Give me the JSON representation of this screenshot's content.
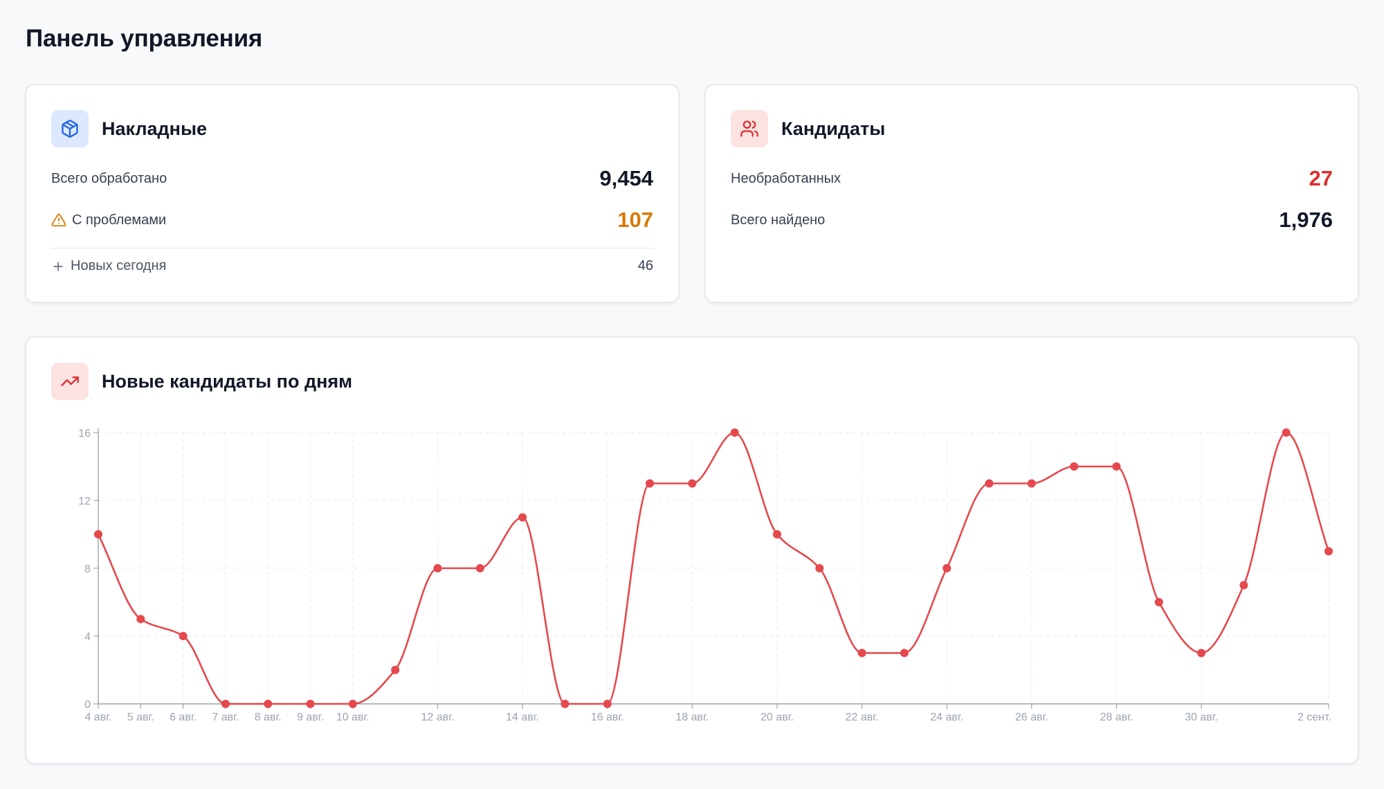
{
  "page": {
    "title": "Панель управления"
  },
  "invoices": {
    "title": "Накладные",
    "icon": "package-icon",
    "total_label": "Всего обработано",
    "total_value": "9,454",
    "problems_label": "С проблемами",
    "problems_value": "107",
    "new_today_label": "Новых сегодня",
    "new_today_value": "46"
  },
  "candidates": {
    "title": "Кандидаты",
    "icon": "users-icon",
    "unprocessed_label": "Необработанных",
    "unprocessed_value": "27",
    "found_label": "Всего найдено",
    "found_value": "1,976"
  },
  "chart_section": {
    "title": "Новые кандидаты по дням",
    "icon": "trending-up-icon"
  },
  "colors": {
    "accent_red": "#e5484d",
    "amber": "#d97a06",
    "blue_icon": "#2563eb"
  },
  "chart_data": {
    "type": "line",
    "x": [
      "4 авг.",
      "5 авг.",
      "6 авг.",
      "7 авг.",
      "8 авг.",
      "9 авг.",
      "10 авг.",
      "11 авг.",
      "12 авг.",
      "13 авг.",
      "14 авг.",
      "15 авг.",
      "16 авг.",
      "17 авг.",
      "18 авг.",
      "19 авг.",
      "20 авг.",
      "21 авг.",
      "22 авг.",
      "23 авг.",
      "24 авг.",
      "25 авг.",
      "26 авг.",
      "27 авг.",
      "28 авг.",
      "29 авг.",
      "30 авг.",
      "31 авг.",
      "1 сент.",
      "2 сент."
    ],
    "x_tick_labels": [
      "4 авг.",
      "5 авг.",
      "6 авг.",
      "7 авг.",
      "8 авг.",
      "9 авг.",
      "10 авг.",
      "",
      "12 авг.",
      "",
      "14 авг.",
      "",
      "16 авг.",
      "",
      "18 авг.",
      "",
      "20 авг.",
      "",
      "22 авг.",
      "",
      "24 авг.",
      "",
      "26 авг.",
      "",
      "28 авг.",
      "",
      "30 авг.",
      "",
      "",
      "2 сент."
    ],
    "series": [
      {
        "values": [
          10,
          5,
          4,
          0,
          0,
          0,
          0,
          2,
          8,
          8,
          11,
          0,
          0,
          13,
          13,
          16,
          10,
          8,
          3,
          3,
          8,
          13,
          13,
          14,
          14,
          6,
          3,
          7,
          16,
          9
        ]
      }
    ],
    "y_ticks": [
      0,
      4,
      8,
      12,
      16
    ],
    "ylim": [
      0,
      16
    ],
    "grid": true,
    "smooth": true
  }
}
